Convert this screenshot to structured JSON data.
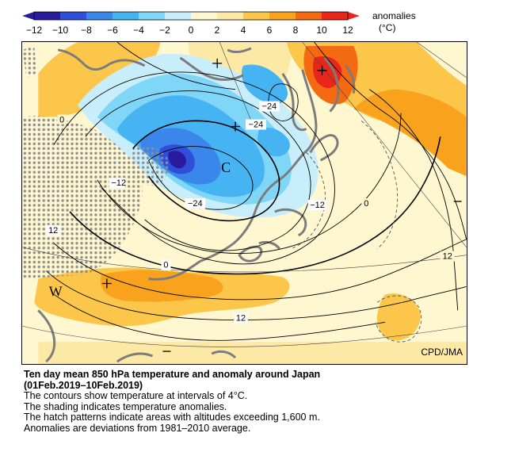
{
  "legend": {
    "ticks": [
      "−12",
      "−10",
      "−8",
      "−6",
      "−4",
      "−2",
      "0",
      "2",
      "4",
      "6",
      "8",
      "10",
      "12"
    ],
    "title_line1": "anomalies",
    "title_line2": "(°C)",
    "colors": [
      "#2a1a9e",
      "#2f4fd8",
      "#3a86ea",
      "#46b3f2",
      "#7fd6f7",
      "#c9eefb",
      "#fff7cf",
      "#fde9a6",
      "#fcc64a",
      "#f9a21e",
      "#f46a12",
      "#e8261a"
    ]
  },
  "map": {
    "contour_labels": [
      "0",
      "−24",
      "−24",
      "−24",
      "−12",
      "−12",
      "0",
      "12",
      "12",
      "12",
      "0"
    ],
    "center_markers": [
      "C",
      "W"
    ],
    "plus_markers": 4,
    "minus_markers": 2
  },
  "credit": "CPD/JMA",
  "caption": {
    "title_line1": "Ten day mean 850 hPa temperature and anomaly around Japan",
    "title_line2": "(01Feb.2019–10Feb.2019)",
    "lines": [
      "The contours show temperature at intervals of 4°C.",
      "The shading indicates temperature anomalies.",
      "The hatch patterns indicate areas with altitudes exceeding 1,600 m.",
      "Anomalies are deviations from 1981–2010 average."
    ]
  }
}
